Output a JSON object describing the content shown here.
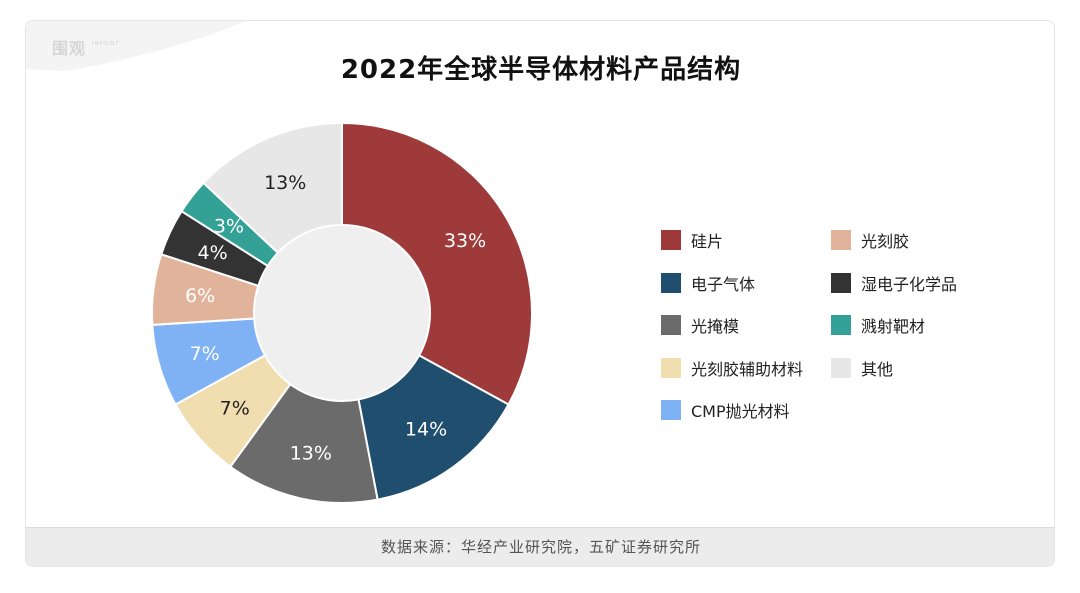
{
  "watermark": {
    "text": "围观",
    "sub": "INPOINT"
  },
  "chart_data": {
    "type": "pie",
    "title": "2022年全球半导体材料产品结构",
    "donut": true,
    "categories": [
      "硅片",
      "电子气体",
      "光掩模",
      "光刻胶辅助材料",
      "CMP抛光材料",
      "光刻胶",
      "湿电子化学品",
      "溅射靶材",
      "其他"
    ],
    "values": [
      33,
      14,
      13,
      7,
      7,
      6,
      4,
      3,
      13
    ],
    "labels": [
      "33%",
      "14%",
      "13%",
      "7%",
      "7%",
      "6%",
      "4%",
      "3%",
      "13%"
    ],
    "colors": [
      "#9e3a3a",
      "#1f4e6e",
      "#6b6b6b",
      "#f0ddb0",
      "#7fb1f5",
      "#e2b39b",
      "#333333",
      "#33a195",
      "#e7e7e7"
    ],
    "label_colors": [
      "#ffffff",
      "#ffffff",
      "#ffffff",
      "#222222",
      "#ffffff",
      "#ffffff",
      "#ffffff",
      "#ffffff",
      "#222222"
    ],
    "legend_position": "right"
  },
  "legend": {
    "items": [
      {
        "label": "硅片",
        "color": "#9e3a3a"
      },
      {
        "label": "光刻胶",
        "color": "#e2b39b"
      },
      {
        "label": "电子气体",
        "color": "#1f4e6e"
      },
      {
        "label": "湿电子化学品",
        "color": "#333333"
      },
      {
        "label": "光掩模",
        "color": "#6b6b6b"
      },
      {
        "label": "溅射靶材",
        "color": "#33a195"
      },
      {
        "label": "光刻胶辅助材料",
        "color": "#f0ddb0"
      },
      {
        "label": "其他",
        "color": "#e7e7e7"
      },
      {
        "label": "CMP抛光材料",
        "color": "#7fb1f5"
      }
    ]
  },
  "source": {
    "text": "数据来源：华经产业研究院，五矿证券研究所"
  }
}
